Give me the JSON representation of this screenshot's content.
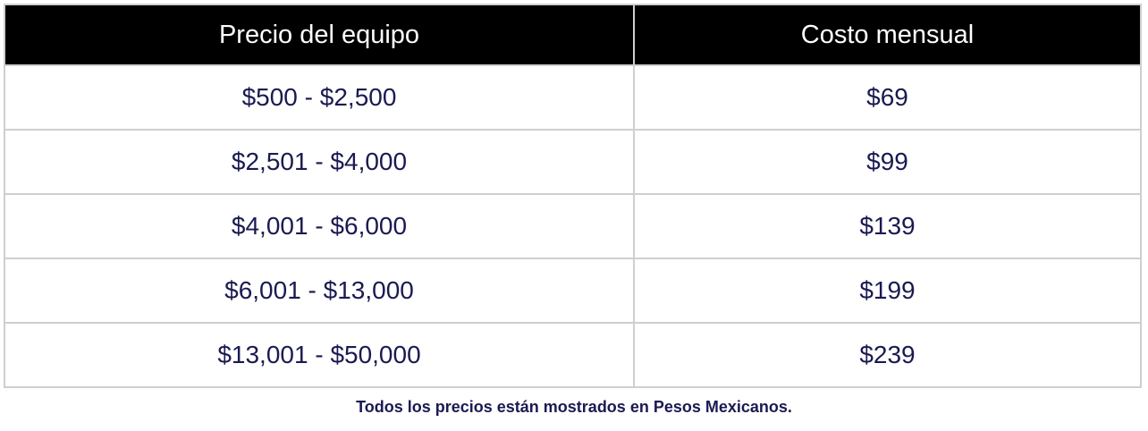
{
  "table": {
    "headers": [
      "Precio del equipo",
      "Costo mensual"
    ],
    "rows": [
      [
        "$500 - $2,500",
        "$69"
      ],
      [
        "$2,501 - $4,000",
        "$99"
      ],
      [
        "$4,001 - $6,000",
        "$139"
      ],
      [
        "$6,001 - $13,000",
        "$199"
      ],
      [
        "$13,001 - $50,000",
        "$239"
      ]
    ]
  },
  "footnote": "Todos los precios están mostrados en Pesos Mexicanos.",
  "colors": {
    "header_bg": "#000000",
    "header_text": "#ffffff",
    "cell_text": "#1a1a52",
    "border": "#cfcfcf"
  }
}
